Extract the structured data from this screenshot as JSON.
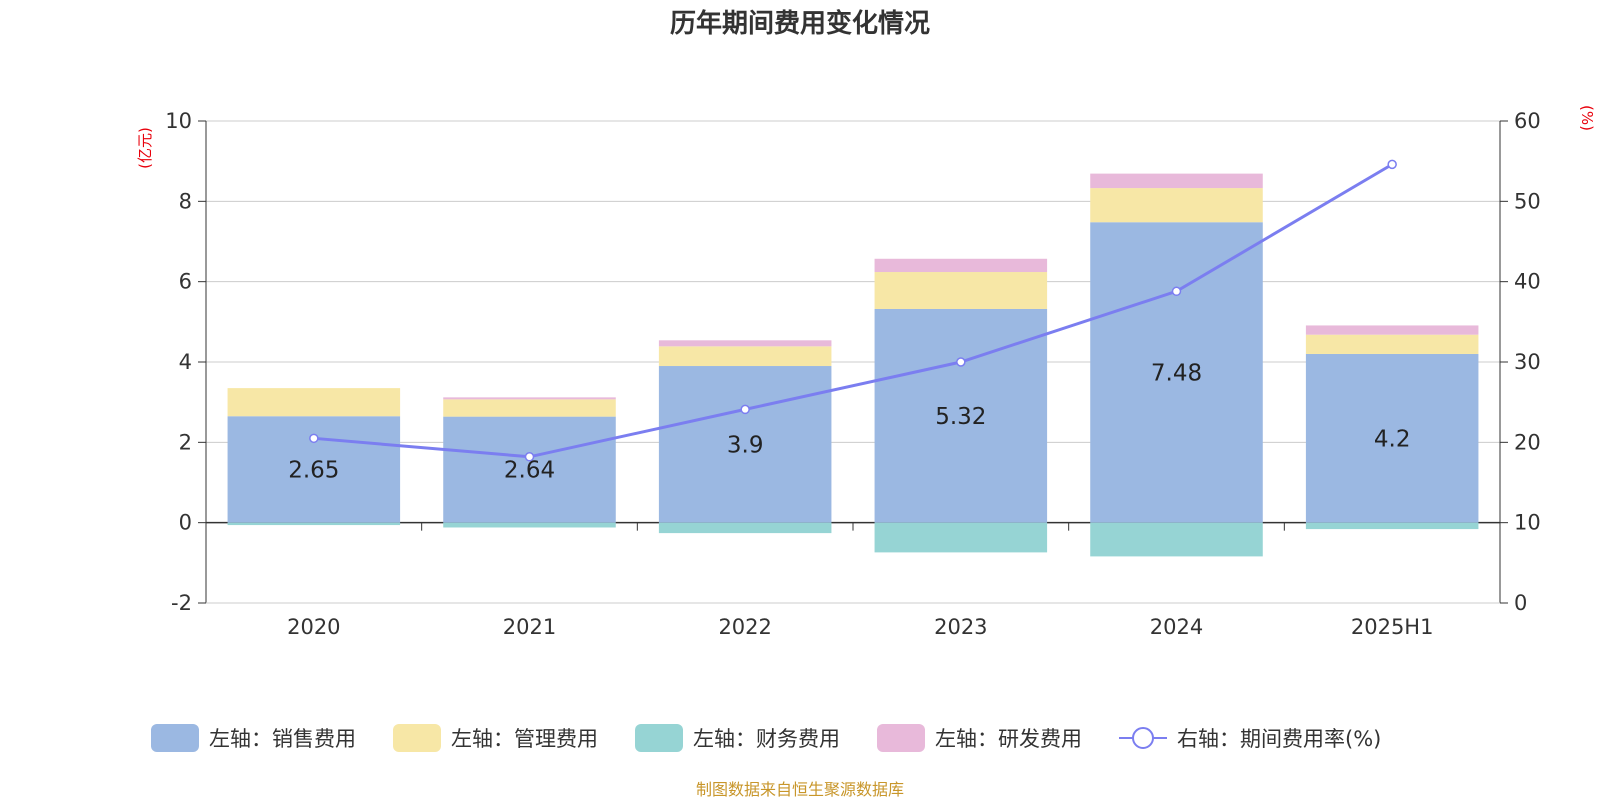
{
  "chart_data": {
    "type": "bar",
    "title": "历年期间费用变化情况",
    "categories": [
      "2020",
      "2021",
      "2022",
      "2023",
      "2024",
      "2025H1"
    ],
    "left_axis": {
      "unit_label": "(亿元)",
      "ylim": [
        -2,
        10
      ],
      "ticks": [
        -2,
        0,
        2,
        4,
        6,
        8,
        10
      ]
    },
    "right_axis": {
      "unit_label": "(%)",
      "ylim": [
        0,
        60
      ],
      "ticks": [
        0,
        10,
        20,
        30,
        40,
        50,
        60
      ]
    },
    "grid": true,
    "stacked": true,
    "series": [
      {
        "name": "左轴：销售费用",
        "type": "bar",
        "axis": "left",
        "color": "#9bb8e2",
        "values": [
          2.65,
          2.64,
          3.9,
          5.32,
          7.48,
          4.2
        ],
        "data_labels": [
          "2.65",
          "2.64",
          "3.9",
          "5.32",
          "7.48",
          "4.2"
        ]
      },
      {
        "name": "左轴：管理费用",
        "type": "bar",
        "axis": "left",
        "color": "#f7e7a6",
        "values": [
          0.7,
          0.43,
          0.49,
          0.92,
          0.85,
          0.48
        ]
      },
      {
        "name": "左轴：财务费用",
        "type": "bar",
        "axis": "left",
        "color": "#96d4d4",
        "values": [
          -0.06,
          -0.12,
          -0.26,
          -0.74,
          -0.84,
          -0.16
        ]
      },
      {
        "name": "左轴：研发费用",
        "type": "bar",
        "axis": "left",
        "color": "#e8b9da",
        "values": [
          0.0,
          0.05,
          0.15,
          0.33,
          0.36,
          0.23
        ]
      },
      {
        "name": "右轴：期间费用率(%)",
        "type": "line",
        "axis": "right",
        "color": "#7b7ef0",
        "values": [
          20.5,
          18.2,
          24.1,
          30.0,
          38.8,
          54.6
        ]
      }
    ],
    "legend_position": "bottom"
  },
  "footer": {
    "source": "制图数据来自恒生聚源数据库"
  }
}
